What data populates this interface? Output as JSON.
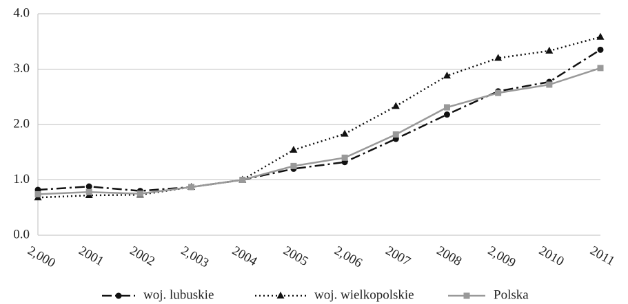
{
  "chart_data": {
    "type": "line",
    "categories": [
      "2,000",
      "2001",
      "2002",
      "2,003",
      "2004",
      "2005",
      "2,006",
      "2007",
      "2008",
      "2,009",
      "2010",
      "2011"
    ],
    "series": [
      {
        "name": "woj. lubuskie",
        "color": "#111111",
        "dash": "dash-dot",
        "marker": "circle",
        "values": [
          0.82,
          0.88,
          0.8,
          0.87,
          1.0,
          1.2,
          1.32,
          1.74,
          2.18,
          2.6,
          2.77,
          3.35
        ]
      },
      {
        "name": "woj. wielkopolskie",
        "color": "#111111",
        "dash": "dotted",
        "marker": "triangle",
        "values": [
          0.68,
          0.72,
          0.73,
          0.87,
          1.0,
          1.54,
          1.83,
          2.33,
          2.88,
          3.2,
          3.33,
          3.58
        ]
      },
      {
        "name": "Polska",
        "color": "#999999",
        "dash": "solid",
        "marker": "square",
        "values": [
          0.74,
          0.78,
          0.75,
          0.87,
          1.0,
          1.25,
          1.4,
          1.82,
          2.31,
          2.57,
          2.72,
          3.02
        ]
      }
    ],
    "ylim": [
      0,
      4
    ],
    "yticks": [
      {
        "value": 0,
        "label": "0.0"
      },
      {
        "value": 1,
        "label": "1.0"
      },
      {
        "value": 2,
        "label": "2.0"
      },
      {
        "value": 3,
        "label": "3.0"
      },
      {
        "value": 4,
        "label": "4.0"
      }
    ],
    "grid": true,
    "legend": "bottom"
  }
}
